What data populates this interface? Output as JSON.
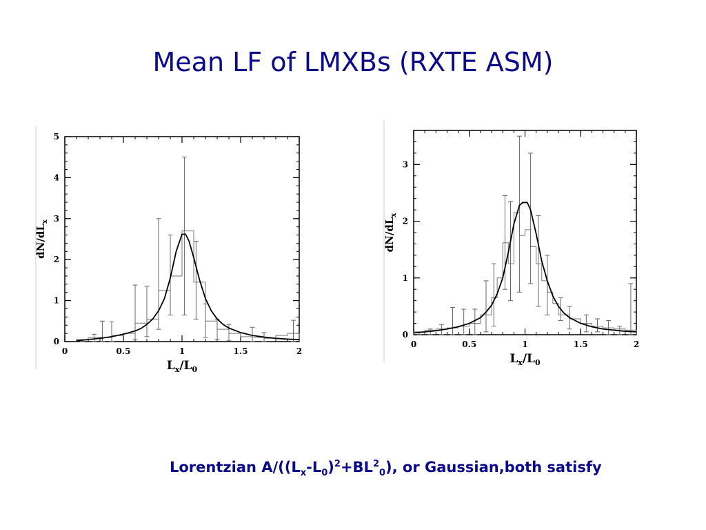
{
  "slide": {
    "title": "Mean LF of LMXBs (RXTE ASM)",
    "caption": {
      "p1": "Lorentzian A/((L",
      "sub_x": "x",
      "p2": "-L",
      "sub_0a": "0",
      "p3": ")",
      "sup_2a": "2",
      "p4": "+BL",
      "sup_2b": "2",
      "sub_0b": "0",
      "p5": "), or Gaussian,both satisfy"
    }
  },
  "chart_data": [
    {
      "type": "histogram",
      "ylabel": "dN/dL",
      "ylabel_sub": "x",
      "xlabel": "L",
      "xlabel_sub1": "x",
      "xlabel_mid": "/L",
      "xlabel_sub2": "0",
      "xlim": [
        0,
        2
      ],
      "ylim": [
        0,
        5
      ],
      "xticks": [
        0,
        0.5,
        1,
        1.5,
        2
      ],
      "xtick_labels": [
        "0",
        "0.5",
        "1",
        "1.5",
        "2"
      ],
      "yticks": [
        0,
        1,
        2,
        3,
        4,
        5
      ],
      "ytick_labels": [
        "0",
        "1",
        "2",
        "3",
        "4",
        "5"
      ],
      "bin_edges": [
        0.1,
        0.2,
        0.3,
        0.4,
        0.5,
        0.6,
        0.7,
        0.8,
        0.9,
        1.0,
        1.1,
        1.2,
        1.3,
        1.4,
        1.5,
        1.6,
        1.7,
        1.8,
        1.9,
        2.0
      ],
      "bin_values": [
        0.05,
        0.1,
        0.1,
        0.15,
        0.2,
        0.45,
        0.55,
        1.25,
        1.6,
        2.7,
        1.45,
        0.5,
        0.3,
        0.2,
        0.12,
        0.1,
        0.08,
        0.15,
        0.2
      ],
      "error_bars": [
        {
          "x": 0.15,
          "lo": 0,
          "hi": 0.05
        },
        {
          "x": 0.25,
          "lo": 0,
          "hi": 0.18
        },
        {
          "x": 0.32,
          "lo": 0,
          "hi": 0.5
        },
        {
          "x": 0.4,
          "lo": 0,
          "hi": 0.48
        },
        {
          "x": 0.6,
          "lo": 0.05,
          "hi": 1.38
        },
        {
          "x": 0.7,
          "lo": 0.12,
          "hi": 1.35
        },
        {
          "x": 0.8,
          "lo": 0.3,
          "hi": 3.0
        },
        {
          "x": 0.9,
          "lo": 0.65,
          "hi": 2.6
        },
        {
          "x": 1.02,
          "lo": 0.65,
          "hi": 4.5
        },
        {
          "x": 1.12,
          "lo": 0.55,
          "hi": 2.45
        },
        {
          "x": 1.2,
          "lo": 0.1,
          "hi": 0.92
        },
        {
          "x": 1.3,
          "lo": 0.05,
          "hi": 0.55
        },
        {
          "x": 1.4,
          "lo": 0.02,
          "hi": 0.42
        },
        {
          "x": 1.6,
          "lo": 0,
          "hi": 0.35
        },
        {
          "x": 1.7,
          "lo": 0,
          "hi": 0.22
        },
        {
          "x": 1.95,
          "lo": 0,
          "hi": 0.52
        }
      ],
      "fit": {
        "x": [
          0.1,
          0.2,
          0.3,
          0.4,
          0.5,
          0.6,
          0.65,
          0.7,
          0.75,
          0.8,
          0.85,
          0.9,
          0.95,
          1.0,
          1.03,
          1.06,
          1.1,
          1.15,
          1.2,
          1.25,
          1.3,
          1.35,
          1.4,
          1.5,
          1.6,
          1.7,
          1.8,
          1.9,
          2.0
        ],
        "y": [
          0.02,
          0.05,
          0.08,
          0.12,
          0.18,
          0.26,
          0.32,
          0.42,
          0.55,
          0.75,
          1.05,
          1.55,
          2.2,
          2.62,
          2.62,
          2.45,
          2.05,
          1.5,
          1.05,
          0.75,
          0.55,
          0.42,
          0.33,
          0.22,
          0.15,
          0.11,
          0.08,
          0.06,
          0.05
        ]
      }
    },
    {
      "type": "histogram",
      "ylabel": "dN/dL",
      "ylabel_sub": "x",
      "xlabel": "L",
      "xlabel_sub1": "x",
      "xlabel_mid": "/L",
      "xlabel_sub2": "0",
      "xlim": [
        0,
        2
      ],
      "ylim": [
        0,
        3.6
      ],
      "xticks": [
        0,
        0.5,
        1,
        1.5,
        2
      ],
      "xtick_labels": [
        "0",
        "0.5",
        "1",
        "1.5",
        "2"
      ],
      "yticks": [
        0,
        1,
        2,
        3
      ],
      "ytick_labels": [
        "0",
        "1",
        "2",
        "3"
      ],
      "bin_edges": [
        0,
        0.1,
        0.2,
        0.3,
        0.4,
        0.5,
        0.6,
        0.7,
        0.75,
        0.8,
        0.85,
        0.9,
        0.95,
        1.0,
        1.05,
        1.1,
        1.15,
        1.2,
        1.25,
        1.3,
        1.4,
        1.5,
        1.6,
        1.7,
        1.8,
        1.9,
        2.0
      ],
      "bin_values": [
        0.05,
        0.08,
        0.1,
        0.12,
        0.15,
        0.2,
        0.35,
        0.65,
        1.0,
        1.62,
        1.25,
        2.15,
        1.75,
        1.85,
        1.55,
        1.25,
        0.95,
        0.75,
        0.55,
        0.35,
        0.28,
        0.2,
        0.15,
        0.12,
        0.1,
        0.08
      ],
      "error_bars": [
        {
          "x": 0.05,
          "lo": 0,
          "hi": 0.05
        },
        {
          "x": 0.15,
          "lo": 0,
          "hi": 0.1
        },
        {
          "x": 0.25,
          "lo": 0,
          "hi": 0.18
        },
        {
          "x": 0.35,
          "lo": 0,
          "hi": 0.48
        },
        {
          "x": 0.45,
          "lo": 0,
          "hi": 0.45
        },
        {
          "x": 0.55,
          "lo": 0,
          "hi": 0.45
        },
        {
          "x": 0.65,
          "lo": 0.05,
          "hi": 0.95
        },
        {
          "x": 0.72,
          "lo": 0.15,
          "hi": 1.25
        },
        {
          "x": 0.82,
          "lo": 0.8,
          "hi": 2.45
        },
        {
          "x": 0.87,
          "lo": 0.6,
          "hi": 2.35
        },
        {
          "x": 0.95,
          "lo": 0.75,
          "hi": 3.5
        },
        {
          "x": 1.05,
          "lo": 0.9,
          "hi": 3.2
        },
        {
          "x": 1.12,
          "lo": 0.5,
          "hi": 2.1
        },
        {
          "x": 1.2,
          "lo": 0.35,
          "hi": 1.4
        },
        {
          "x": 1.32,
          "lo": 0.25,
          "hi": 0.65
        },
        {
          "x": 1.4,
          "lo": 0.1,
          "hi": 0.5
        },
        {
          "x": 1.55,
          "lo": 0.05,
          "hi": 0.35
        },
        {
          "x": 1.65,
          "lo": 0.05,
          "hi": 0.28
        },
        {
          "x": 1.75,
          "lo": 0,
          "hi": 0.25
        },
        {
          "x": 1.85,
          "lo": 0,
          "hi": 0.15
        },
        {
          "x": 1.95,
          "lo": 0,
          "hi": 0.9
        }
      ],
      "fit": {
        "x": [
          0,
          0.1,
          0.2,
          0.3,
          0.4,
          0.5,
          0.6,
          0.65,
          0.7,
          0.75,
          0.8,
          0.85,
          0.9,
          0.95,
          0.98,
          1.02,
          1.05,
          1.1,
          1.15,
          1.2,
          1.25,
          1.3,
          1.35,
          1.4,
          1.5,
          1.6,
          1.7,
          1.8,
          1.9,
          2.0
        ],
        "y": [
          0.03,
          0.05,
          0.07,
          0.1,
          0.14,
          0.2,
          0.3,
          0.4,
          0.52,
          0.72,
          1.0,
          1.45,
          1.95,
          2.28,
          2.33,
          2.33,
          2.2,
          1.78,
          1.3,
          0.95,
          0.68,
          0.5,
          0.38,
          0.3,
          0.2,
          0.14,
          0.1,
          0.08,
          0.06,
          0.05
        ]
      }
    }
  ]
}
